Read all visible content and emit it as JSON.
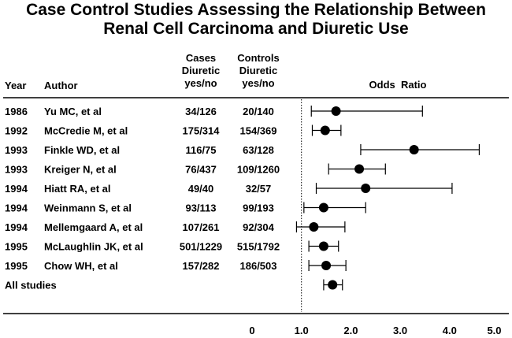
{
  "chart_data": {
    "type": "forest",
    "title_line1": "Case Control Studies Assessing the Relationship Between",
    "title_line2": "Renal Cell Carcinoma and Diuretic Use",
    "columns": {
      "year": "Year",
      "author": "Author",
      "cases": [
        "Cases",
        "Diuretic",
        "yes/no"
      ],
      "controls": [
        "Controls",
        "Diuretic",
        "yes/no"
      ],
      "effect": "Odds  Ratio"
    },
    "rows": [
      {
        "year": "1986",
        "author": "Yu MC, et al",
        "cases": "34/126",
        "controls": "20/140",
        "or": 1.7,
        "lo": 1.2,
        "hi": 3.45
      },
      {
        "year": "1992",
        "author": "McCredie M, et al",
        "cases": "175/314",
        "controls": "154/369",
        "or": 1.48,
        "lo": 1.22,
        "hi": 1.8
      },
      {
        "year": "1993",
        "author": "Finkle WD, et al",
        "cases": "116/75",
        "controls": "63/128",
        "or": 3.28,
        "lo": 2.2,
        "hi": 4.6
      },
      {
        "year": "1993",
        "author": "Kreiger N, et al",
        "cases": "76/437",
        "controls": "109/1260",
        "or": 2.17,
        "lo": 1.55,
        "hi": 2.7
      },
      {
        "year": "1994",
        "author": "Hiatt RA, et al",
        "cases": "49/40",
        "controls": "32/57",
        "or": 2.3,
        "lo": 1.3,
        "hi": 4.05
      },
      {
        "year": "1994",
        "author": "Weinmann S, et al",
        "cases": "93/113",
        "controls": "99/193",
        "or": 1.45,
        "lo": 1.05,
        "hi": 2.3
      },
      {
        "year": "1994",
        "author": "Mellemgaard A, et al",
        "cases": "107/261",
        "controls": "92/304",
        "or": 1.25,
        "lo": 0.9,
        "hi": 1.88
      },
      {
        "year": "1995",
        "author": "McLaughlin JK, et al",
        "cases": "501/1229",
        "controls": "515/1792",
        "or": 1.45,
        "lo": 1.15,
        "hi": 1.75
      },
      {
        "year": "1995",
        "author": "Chow  WH, et al",
        "cases": "157/282",
        "controls": "186/503",
        "or": 1.5,
        "lo": 1.15,
        "hi": 1.9
      },
      {
        "year": "",
        "author": "All studies",
        "cases": "",
        "controls": "",
        "or": 1.63,
        "lo": 1.45,
        "hi": 1.83
      }
    ],
    "x_ticks": [
      {
        "value": 0,
        "label": "0"
      },
      {
        "value": 1,
        "label": "1.0"
      },
      {
        "value": 2,
        "label": "2.0"
      },
      {
        "value": 3,
        "label": "3.0"
      },
      {
        "value": 4,
        "label": "4.0"
      },
      {
        "value": 5,
        "label": "5.0"
      }
    ],
    "xlim": [
      0,
      5
    ],
    "reference_line": 1.0,
    "grid": false
  }
}
